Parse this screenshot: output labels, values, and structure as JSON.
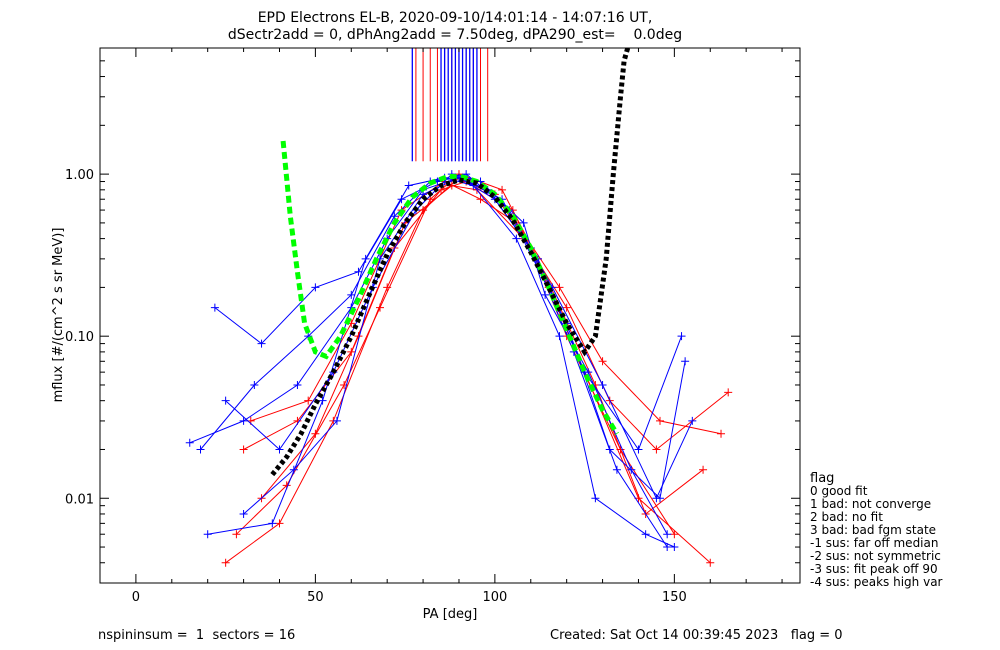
{
  "chart_data": {
    "type": "line",
    "title": "EPD Electrons EL-B, 2020-09-10/14:01:14 - 14:07:16 UT,",
    "subtitle": "dSectr2add = 0, dPhAng2add = 7.50deg, dPA290_est=    0.0deg",
    "xlabel": "PA [deg]",
    "ylabel": "mflux [#/(cm^2 s sr MeV)]",
    "xlim": [
      -10,
      185
    ],
    "ylim": [
      0.003,
      6.0
    ],
    "y_scale": "log",
    "x_ticks": [
      0,
      50,
      100,
      150
    ],
    "y_ticks": [
      0.01,
      0.1,
      1.0
    ],
    "x_tick_labels": [
      "0",
      "50",
      "100",
      "150"
    ],
    "y_tick_labels": [
      "0.01",
      "0.10",
      "1.00"
    ],
    "grid": false,
    "legend": {
      "placement": "right",
      "title": "flag",
      "entries": [
        " 0 good fit",
        " 1 bad: not converge",
        " 2 bad: no fit",
        " 3 bad: bad fgm state",
        "-1 sus: far off median",
        "-2 sus: not symmetric",
        "-3 sus: fit peak off 90",
        "-4 sus: peaks high var"
      ]
    },
    "series": [
      {
        "color": "#ff0000",
        "style": "lines+plus",
        "curves": [
          {
            "x": [
              25,
              40,
              55,
              70,
              80,
              90,
              100,
              110,
              120,
              135,
              150
            ],
            "y": [
              0.004,
              0.007,
              0.03,
              0.2,
              0.6,
              0.95,
              0.75,
              0.35,
              0.1,
              0.02,
              0.006
            ]
          },
          {
            "x": [
              30,
              45,
              60,
              72,
              85,
              92,
              105,
              115,
              125,
              140,
              160
            ],
            "y": [
              0.02,
              0.03,
              0.08,
              0.35,
              0.8,
              0.9,
              0.6,
              0.2,
              0.06,
              0.01,
              0.004
            ]
          },
          {
            "x": [
              35,
              50,
              62,
              75,
              88,
              95,
              108,
              120,
              132,
              145,
              165
            ],
            "y": [
              0.01,
              0.025,
              0.1,
              0.5,
              0.85,
              0.8,
              0.4,
              0.15,
              0.04,
              0.02,
              0.045
            ]
          },
          {
            "x": [
              28,
              42,
              58,
              68,
              82,
              90,
              102,
              112,
              128,
              142,
              158
            ],
            "y": [
              0.006,
              0.012,
              0.05,
              0.15,
              0.7,
              1.0,
              0.8,
              0.3,
              0.05,
              0.008,
              0.015
            ]
          },
          {
            "x": [
              32,
              48,
              60,
              74,
              86,
              96,
              106,
              118,
              130,
              146,
              163
            ],
            "y": [
              0.03,
              0.04,
              0.12,
              0.6,
              0.9,
              0.7,
              0.5,
              0.2,
              0.07,
              0.03,
              0.025
            ]
          }
        ]
      },
      {
        "color": "#0000ff",
        "style": "lines+plus",
        "curves": [
          {
            "x": [
              15,
              30,
              45,
              60,
              70,
              80,
              90,
              100,
              112,
              125,
              140,
              152
            ],
            "y": [
              0.022,
              0.03,
              0.05,
              0.15,
              0.4,
              0.8,
              0.95,
              0.7,
              0.3,
              0.06,
              0.02,
              0.1
            ]
          },
          {
            "x": [
              22,
              35,
              50,
              62,
              74,
              84,
              92,
              104,
              116,
              130,
              145,
              155
            ],
            "y": [
              0.15,
              0.09,
              0.2,
              0.25,
              0.7,
              0.9,
              1.0,
              0.6,
              0.2,
              0.05,
              0.01,
              0.03
            ]
          },
          {
            "x": [
              20,
              38,
              52,
              64,
              76,
              86,
              94,
              106,
              118,
              128,
              142,
              150
            ],
            "y": [
              0.006,
              0.007,
              0.04,
              0.3,
              0.85,
              0.95,
              0.85,
              0.4,
              0.1,
              0.01,
              0.006,
              0.005
            ]
          },
          {
            "x": [
              25,
              40,
              55,
              66,
              78,
              88,
              96,
              108,
              114,
              126,
              138,
              148
            ],
            "y": [
              0.04,
              0.02,
              0.06,
              0.2,
              0.6,
              1.0,
              0.9,
              0.5,
              0.18,
              0.06,
              0.015,
              0.006
            ]
          },
          {
            "x": [
              18,
              33,
              48,
              60,
              72,
              82,
              90,
              102,
              120,
              132,
              146,
              153
            ],
            "y": [
              0.02,
              0.05,
              0.1,
              0.18,
              0.55,
              0.9,
              0.95,
              0.7,
              0.12,
              0.02,
              0.01,
              0.07
            ]
          },
          {
            "x": [
              30,
              44,
              56,
              68,
              80,
              90,
              98,
              110,
              122,
              134,
              148
            ],
            "y": [
              0.008,
              0.015,
              0.03,
              0.3,
              0.75,
              0.95,
              0.8,
              0.35,
              0.08,
              0.015,
              0.005
            ]
          }
        ]
      }
    ],
    "fit_curves": [
      {
        "color": "#00ff00",
        "style": "dashed",
        "x": [
          41,
          43,
          45,
          47,
          50,
          53,
          57,
          62,
          67,
          72,
          77,
          82,
          87,
          91,
          95,
          100,
          105,
          110,
          115,
          120,
          125,
          130,
          134
        ],
        "y": [
          1.6,
          0.55,
          0.25,
          0.12,
          0.08,
          0.075,
          0.1,
          0.17,
          0.3,
          0.5,
          0.72,
          0.88,
          0.97,
          0.96,
          0.9,
          0.75,
          0.55,
          0.35,
          0.2,
          0.11,
          0.06,
          0.035,
          0.025
        ]
      },
      {
        "color": "#000000",
        "style": "dotted",
        "x": [
          38,
          42,
          46,
          50,
          55,
          60,
          65,
          70,
          75,
          80,
          85,
          90,
          95,
          100,
          105,
          110,
          115,
          120,
          125,
          128,
          131,
          133,
          135,
          136,
          137
        ],
        "y": [
          0.014,
          0.018,
          0.025,
          0.038,
          0.06,
          0.1,
          0.18,
          0.32,
          0.5,
          0.7,
          0.85,
          0.92,
          0.88,
          0.72,
          0.52,
          0.33,
          0.2,
          0.12,
          0.08,
          0.1,
          0.3,
          1.0,
          3.0,
          5.0,
          6.0
        ]
      }
    ],
    "spikes": {
      "baseline_y": 1.2,
      "red_x": [
        78,
        80,
        82,
        84,
        86,
        88,
        90,
        92,
        94,
        96,
        98
      ],
      "blue_x": [
        77,
        85,
        86,
        87,
        88,
        89,
        90,
        91,
        92,
        93,
        94,
        95
      ]
    }
  },
  "footer": {
    "left": "nspininsum =  1  sectors = 16",
    "right": "Created: Sat Oct 14 00:39:45 2023   flag = 0"
  }
}
